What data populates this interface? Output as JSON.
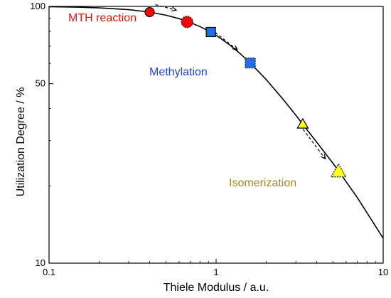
{
  "chart_data": {
    "type": "scatter",
    "xlabel": "Thiele Modulus / a.u.",
    "ylabel": "Utilization Degree / %",
    "xscale": "log",
    "yscale": "log",
    "xlim": [
      0.1,
      10
    ],
    "ylim": [
      10,
      100
    ],
    "x_ticks": [
      0.1,
      1,
      10
    ],
    "x_tick_labels": [
      "0.1",
      "1",
      "10"
    ],
    "y_ticks": [
      10,
      50,
      100
    ],
    "y_tick_labels": [
      "10",
      "50",
      "100"
    ],
    "grid": false,
    "curve": {
      "x": [
        0.1,
        0.15,
        0.2,
        0.3,
        0.4,
        0.5,
        0.6,
        0.7,
        0.8,
        0.9,
        1.0,
        1.2,
        1.4,
        1.6,
        2.0,
        2.5,
        3.0,
        3.3,
        4.0,
        5.0,
        5.5,
        7.0,
        10.0
      ],
      "y": [
        99.7,
        99.3,
        98.7,
        97.1,
        95.0,
        92.4,
        89.6,
        86.6,
        83.5,
        80.3,
        77.2,
        71.0,
        65.3,
        60.2,
        51.8,
        43.7,
        37.7,
        34.7,
        29.6,
        24.5,
        22.5,
        18.0,
        12.5
      ]
    },
    "series": [
      {
        "name": "MTH reaction",
        "marker": "circle",
        "color": "#ff0000",
        "x": [
          0.4,
          0.67
        ],
        "y": [
          95.0,
          87.0
        ]
      },
      {
        "name": "Methylation",
        "marker": "square",
        "color": "#1f6fe8",
        "x": [
          0.93,
          1.6
        ],
        "y": [
          79.5,
          60.2
        ]
      },
      {
        "name": "Isomerization",
        "marker": "triangle",
        "color": "#ffff1a",
        "x": [
          3.3,
          5.4
        ],
        "y": [
          34.7,
          22.7
        ]
      }
    ],
    "annotations": [
      {
        "text": "MTH reaction",
        "color": "#e8140c"
      },
      {
        "text": "Methylation",
        "color": "#1f45d6"
      },
      {
        "text": "Isomerization",
        "color": "#a88a14"
      }
    ]
  }
}
